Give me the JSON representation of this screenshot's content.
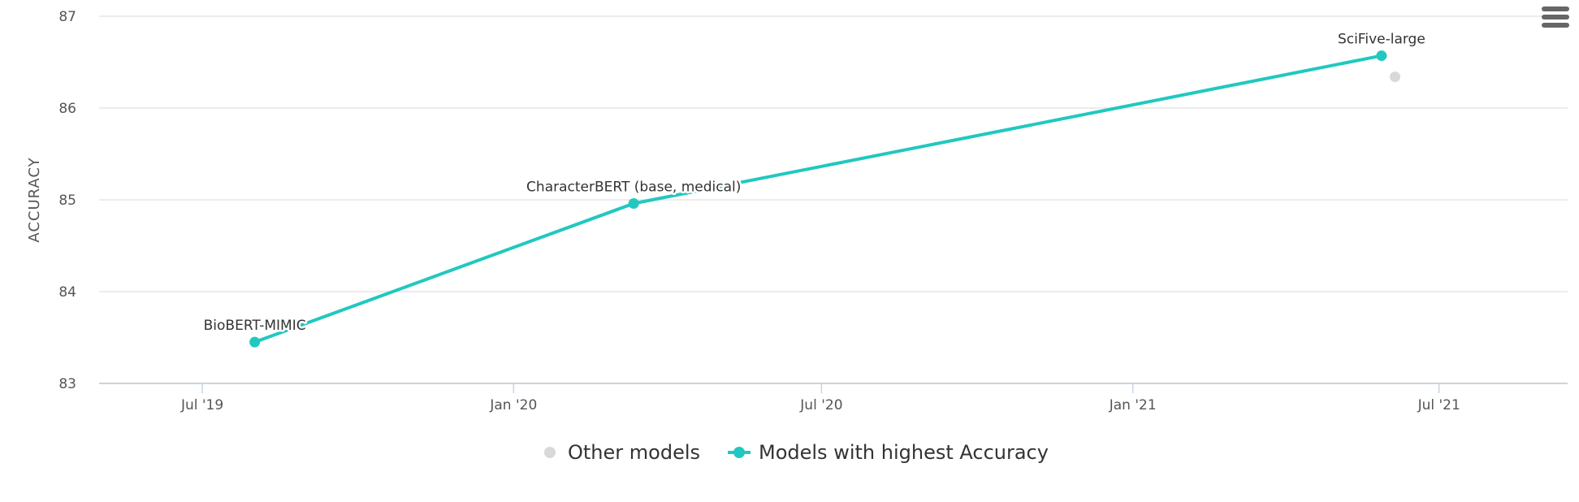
{
  "chart_data": {
    "type": "line",
    "ylabel": "ACCURACY",
    "xlabel": "",
    "title": "",
    "ylim": [
      83,
      87
    ],
    "yticks": [
      83,
      84,
      85,
      86,
      87
    ],
    "xlim": [
      "2019-05-01",
      "2021-09-15"
    ],
    "xticks": [
      {
        "date": "2019-07-01",
        "label": "Jul '19"
      },
      {
        "date": "2020-01-01",
        "label": "Jan '20"
      },
      {
        "date": "2020-07-01",
        "label": "Jul '20"
      },
      {
        "date": "2021-01-01",
        "label": "Jan '21"
      },
      {
        "date": "2021-07-01",
        "label": "Jul '21"
      }
    ],
    "grid": true,
    "legend_position": "bottom",
    "series": [
      {
        "name": "Other models",
        "type": "scatter",
        "color": "#d9d9d9",
        "points": [
          {
            "x": "2021-06-05",
            "y": 86.34,
            "label": ""
          }
        ]
      },
      {
        "name": "Models with highest Accuracy",
        "type": "line",
        "color": "#21c8c0",
        "points": [
          {
            "x": "2019-08-01",
            "y": 83.45,
            "label": "BioBERT-MIMIC"
          },
          {
            "x": "2020-03-12",
            "y": 84.96,
            "label": "CharacterBERT (base, medical)"
          },
          {
            "x": "2021-05-28",
            "y": 86.57,
            "label": "SciFive-large"
          }
        ]
      }
    ]
  },
  "ui": {
    "menu_icon": "hamburger-menu-icon",
    "axis_color": "#c8d4e0",
    "grid_color": "#e6e6e6",
    "text_color": "#555555"
  }
}
